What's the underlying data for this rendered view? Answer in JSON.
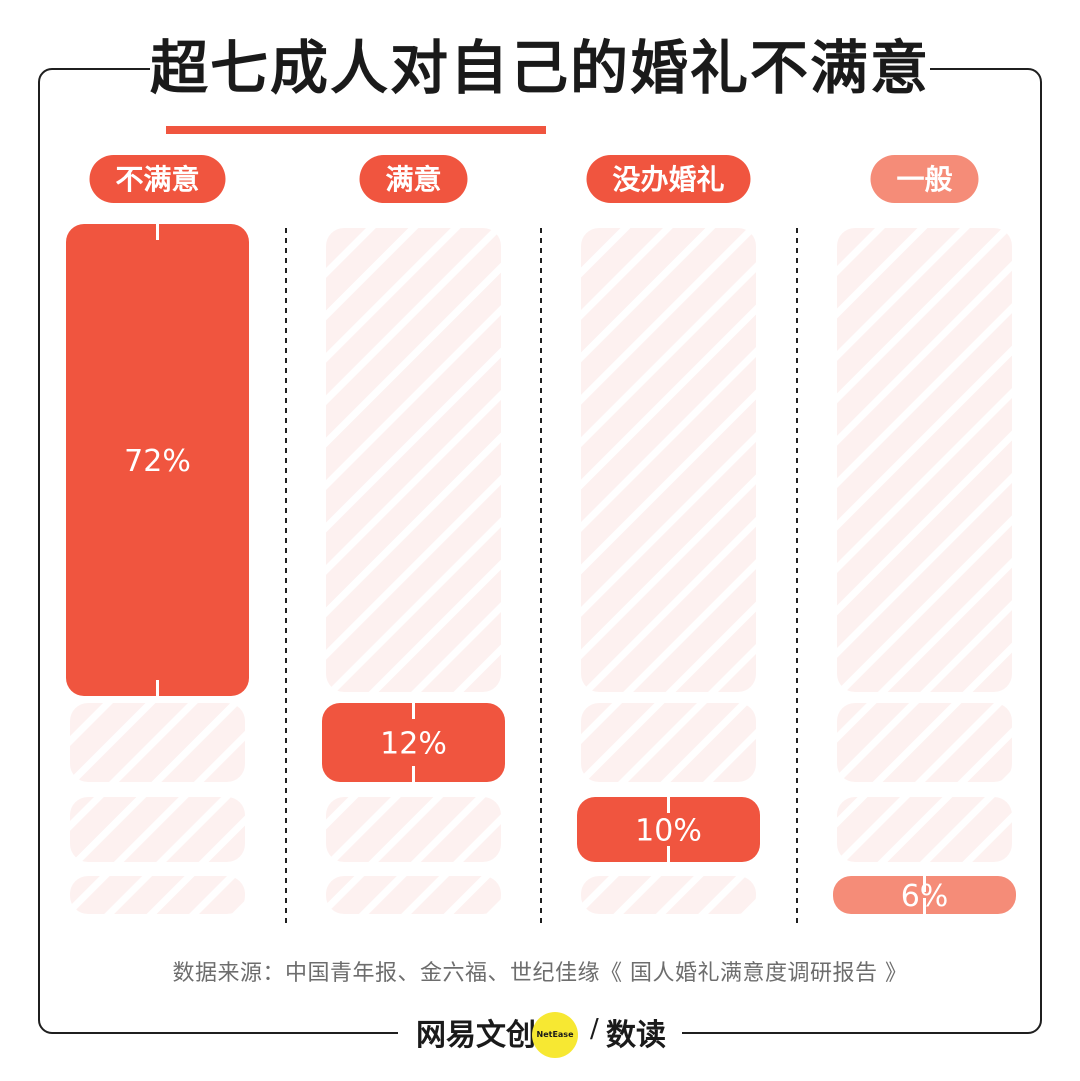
{
  "title": "超七成人对自己的婚礼不满意",
  "chart_data": {
    "type": "bar",
    "categories": [
      "不满意",
      "满意",
      "没办婚礼",
      "一般"
    ],
    "values": [
      72,
      12,
      10,
      6
    ],
    "value_labels": [
      "72%",
      "12%",
      "10%",
      "6%"
    ],
    "unit": "%",
    "ylim": [
      0,
      100
    ]
  },
  "colors": {
    "dark_red": "#f0553f",
    "light_red": "#f58c78",
    "stripe_bg": "#fdf1f0",
    "stripe_line": "#ffffff"
  },
  "source": "数据来源：中国青年报、金六福、世纪佳缘《 国人婚礼满意度调研报告 》",
  "footer": {
    "brand": "网易文创",
    "badge": "NetEase",
    "slash": "/",
    "sub": "数读"
  }
}
